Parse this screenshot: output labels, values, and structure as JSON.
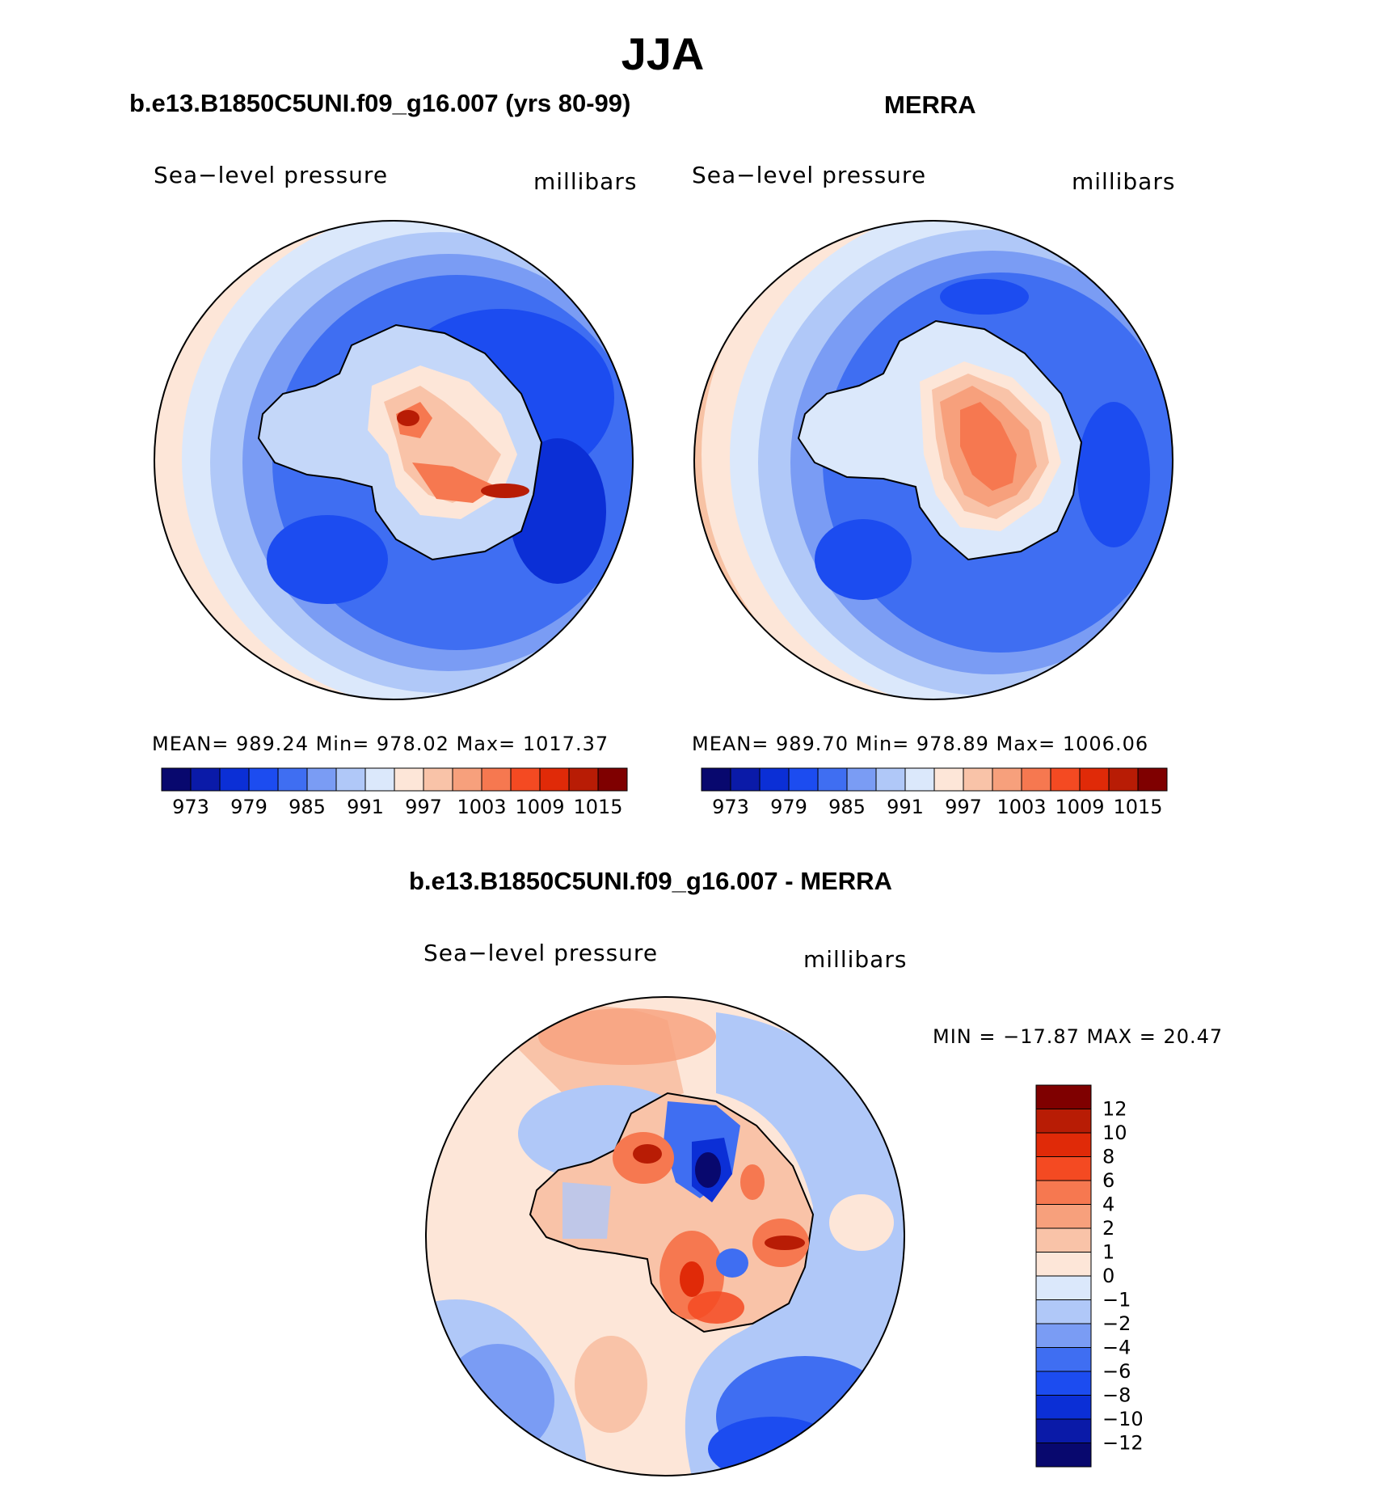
{
  "figure_title": "JJA",
  "panels": [
    {
      "title": "b.e13.B1850C5UNI.f09_g16.007 (yrs 80-99)",
      "left_label": "Sea−level pressure",
      "right_label": "millibars",
      "stats": "MEAN=  989.24   Min=  978.02   Max=  1017.37"
    },
    {
      "title": "MERRA",
      "left_label": "Sea−level pressure",
      "right_label": "millibars",
      "stats": "MEAN=  989.70   Min=  978.89   Max=  1006.06"
    },
    {
      "title": "b.e13.B1850C5UNI.f09_g16.007 - MERRA",
      "left_label": "Sea−level pressure",
      "right_label": "millibars",
      "stats": "MIN  =  −17.87  MAX  =    20.47"
    }
  ],
  "colorbar_abs": {
    "tick_labels": [
      "973",
      "979",
      "985",
      "991",
      "997",
      "1003",
      "1009",
      "1015"
    ],
    "colors": [
      "#08086e",
      "#0a1aa8",
      "#0b2fd6",
      "#1c4cf0",
      "#3f6ef2",
      "#7a9cf4",
      "#b0c8f8",
      "#dbe8fb",
      "#fde6d8",
      "#f9c3a8",
      "#f7a07c",
      "#f67850",
      "#f44a22",
      "#e02a08",
      "#b81c05",
      "#7f0000"
    ]
  },
  "colorbar_diff": {
    "tick_labels": [
      "12",
      "10",
      "8",
      "6",
      "4",
      "2",
      "1",
      "0",
      "−1",
      "−2",
      "−4",
      "−6",
      "−8",
      "−10",
      "−12"
    ],
    "colors": [
      "#7f0000",
      "#b81c05",
      "#e02a08",
      "#f44a22",
      "#f67850",
      "#f7a07c",
      "#f9c3a8",
      "#fde6d8",
      "#dbe8fb",
      "#b0c8f8",
      "#7a9cf4",
      "#3f6ef2",
      "#1c4cf0",
      "#0b2fd6",
      "#0a1aa8",
      "#08086e"
    ]
  },
  "colors": {
    "ocean_deep_blue": "#2b5ce8",
    "ocean_mid_blue": "#6f93f2",
    "ocean_light_blue": "#c4d7f9",
    "warm_edge": "#f8b896",
    "land_high": "#f56a3c",
    "coastline": "#000000"
  }
}
